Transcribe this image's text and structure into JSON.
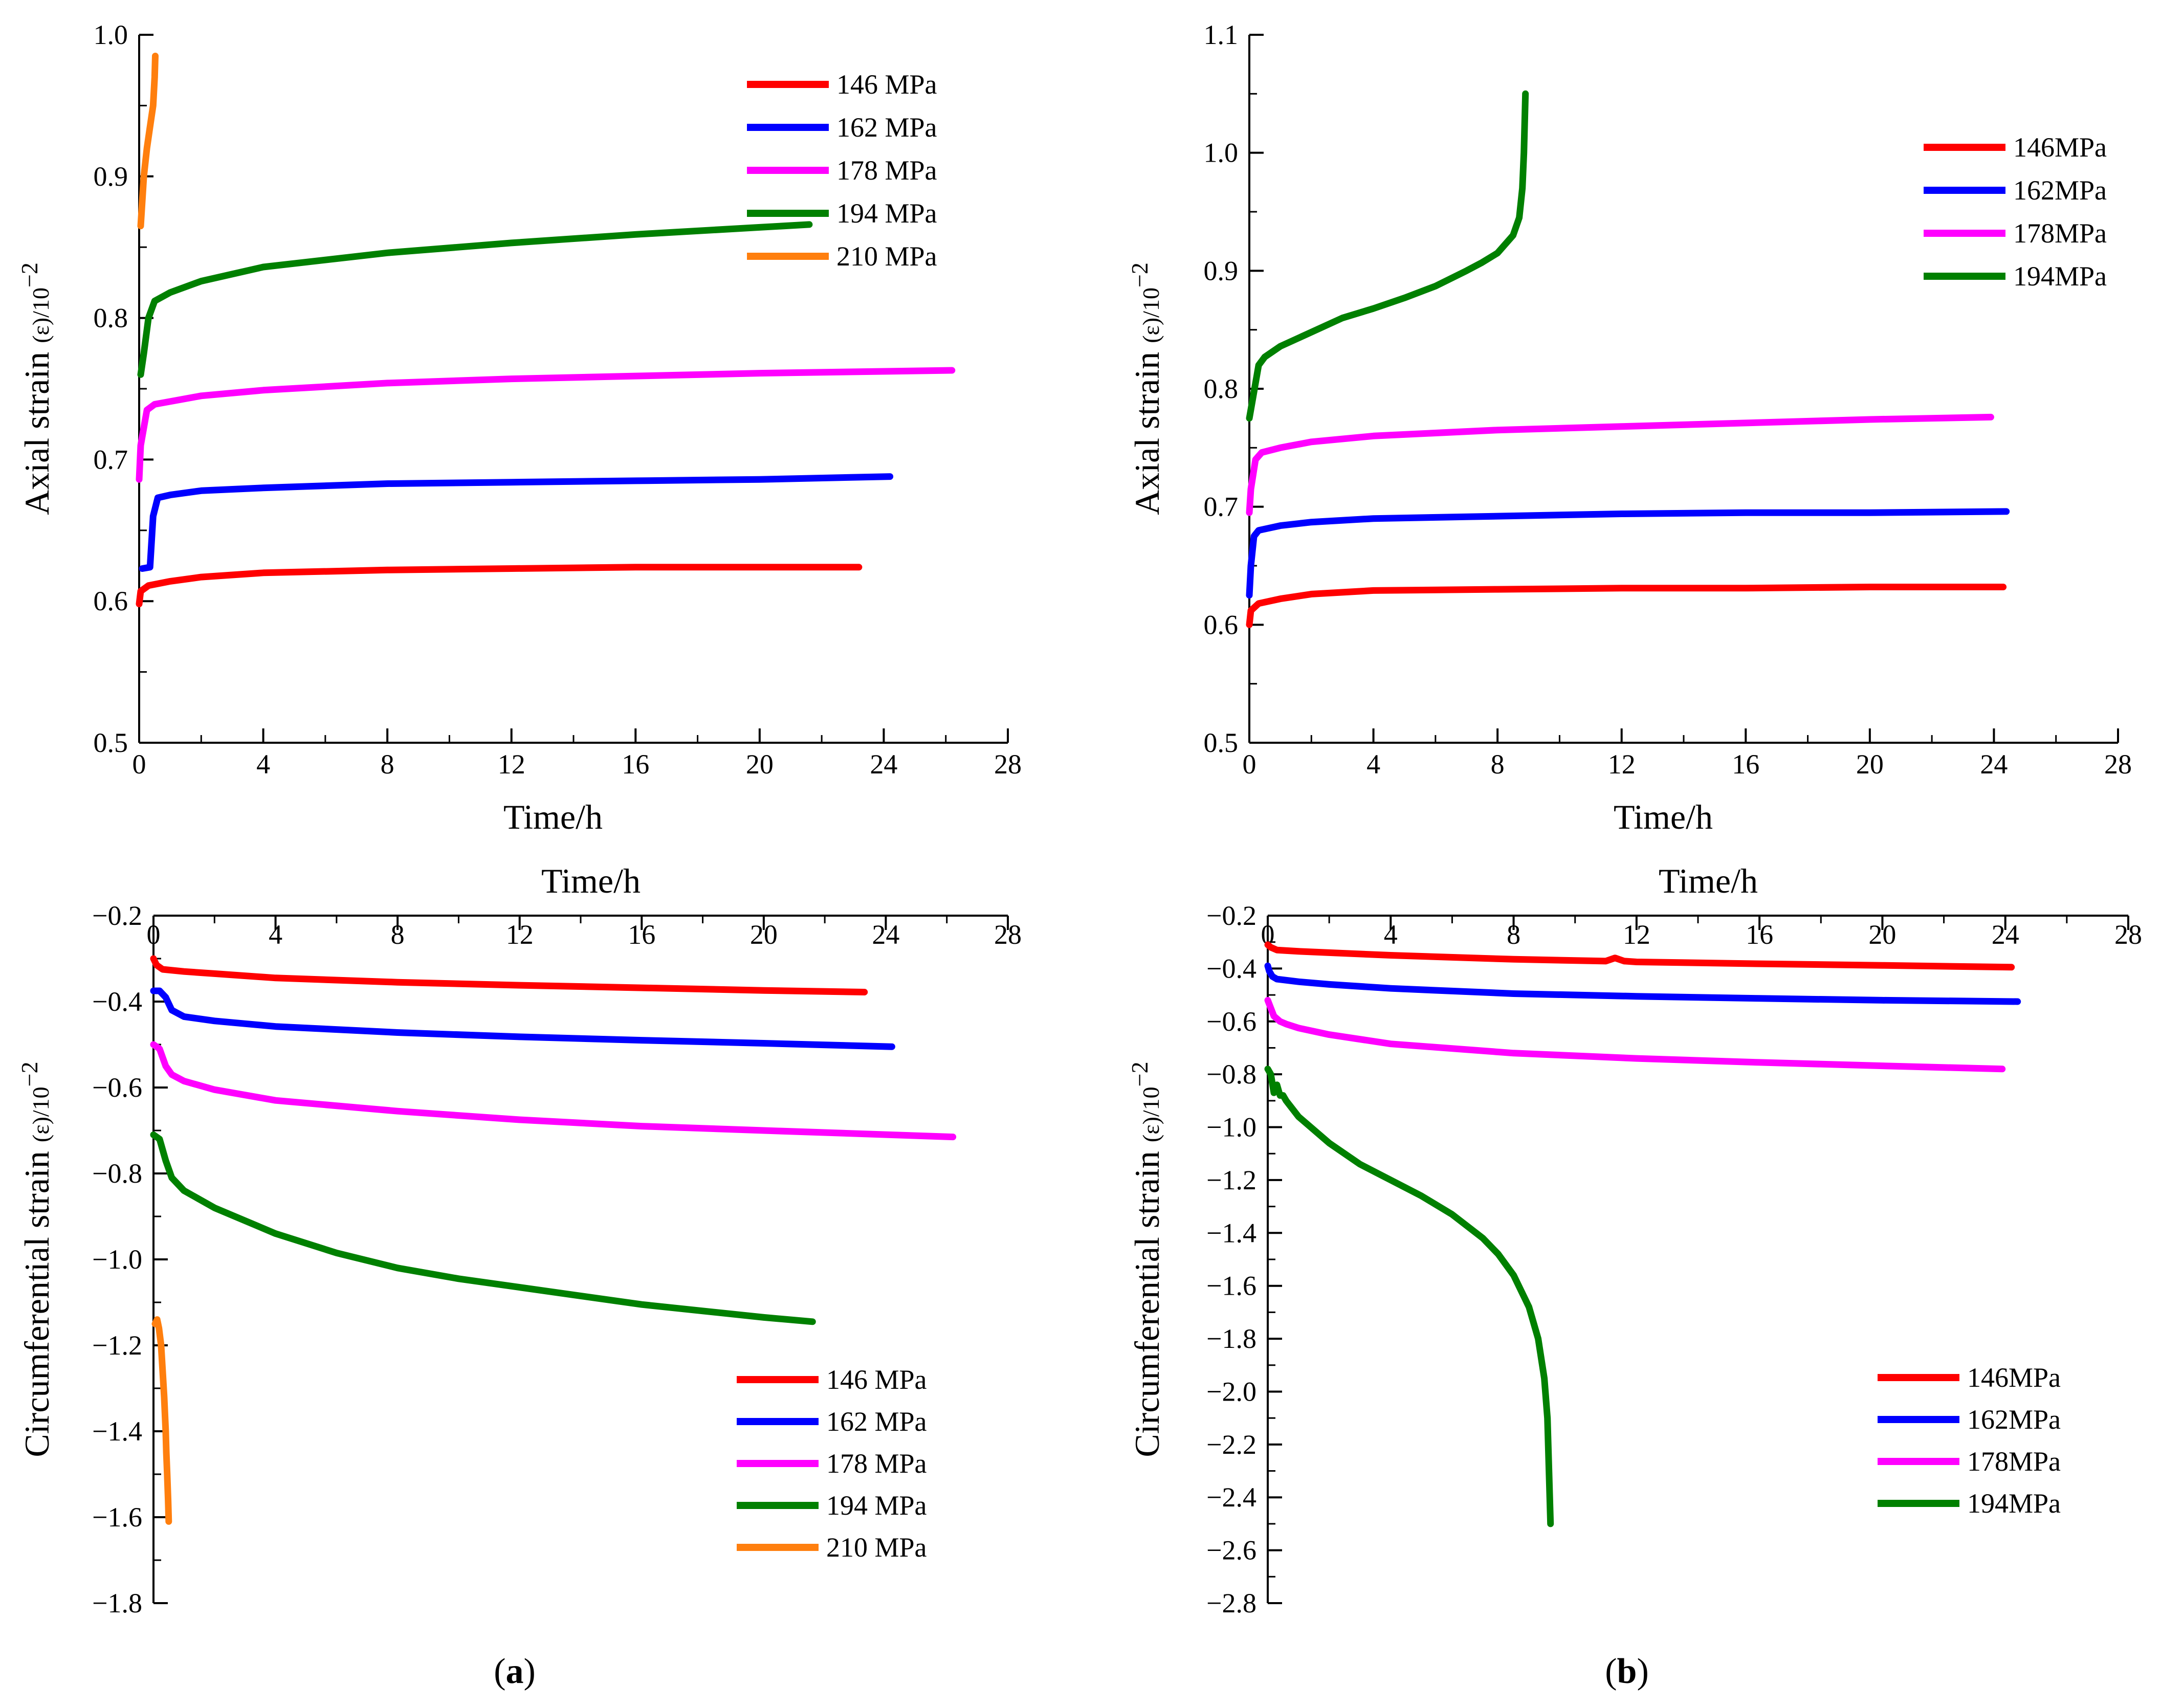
{
  "figure": {
    "captions": [
      {
        "pre": "(",
        "letter": "a",
        "post": ")"
      },
      {
        "pre": "(",
        "letter": "b",
        "post": ")"
      }
    ]
  },
  "colors": {
    "146": "#ff0000",
    "162": "#0000ff",
    "178": "#ff00ff",
    "194": "#008000",
    "210": "#ff7f0e",
    "axis": "#000000"
  },
  "chart_data": [
    {
      "id": "a-axial",
      "type": "line",
      "xlabel": "Time/h",
      "ylabel_main": "Axial strain ",
      "ylabel_paren": "(ε)",
      "ylabel_unit": "/10",
      "ylabel_exp": "−2",
      "xlim": [
        0,
        28
      ],
      "ylim": [
        0.5,
        1.0
      ],
      "xticks": [
        0,
        4,
        8,
        12,
        16,
        20,
        24,
        28
      ],
      "yticks": [
        0.5,
        0.6,
        0.7,
        0.8,
        0.9,
        1.0
      ],
      "xtick_labels": [
        "0",
        "4",
        "8",
        "12",
        "16",
        "20",
        "24",
        "28"
      ],
      "ytick_labels": [
        "0.5",
        "0.6",
        "0.7",
        "0.8",
        "0.9",
        "1.0"
      ],
      "legend": [
        "146 MPa",
        "162 MPa",
        "178 MPa",
        "194 MPa",
        "210 MPa"
      ],
      "series": [
        {
          "name": "146 MPa",
          "color": "#ff0000",
          "x": [
            0,
            0.05,
            0.3,
            1,
            2,
            4,
            8,
            12,
            16,
            20,
            23.2
          ],
          "y": [
            0.598,
            0.607,
            0.611,
            0.614,
            0.617,
            0.62,
            0.622,
            0.623,
            0.624,
            0.624,
            0.624
          ]
        },
        {
          "name": "162 MPa",
          "color": "#0000ff",
          "x": [
            0.1,
            0.35,
            0.45,
            0.6,
            1,
            2,
            4,
            8,
            12,
            16,
            20,
            24.2
          ],
          "y": [
            0.623,
            0.624,
            0.66,
            0.673,
            0.675,
            0.678,
            0.68,
            0.683,
            0.684,
            0.685,
            0.686,
            0.688
          ]
        },
        {
          "name": "178 MPa",
          "color": "#ff00ff",
          "x": [
            0,
            0.05,
            0.25,
            0.5,
            1,
            2,
            4,
            8,
            12,
            16,
            20,
            26.2
          ],
          "y": [
            0.686,
            0.71,
            0.735,
            0.739,
            0.741,
            0.745,
            0.749,
            0.754,
            0.757,
            0.759,
            0.761,
            0.763
          ]
        },
        {
          "name": "194 MPa",
          "color": "#008000",
          "x": [
            0.05,
            0.15,
            0.3,
            0.5,
            1,
            2,
            4,
            8,
            12,
            16,
            20,
            21.6
          ],
          "y": [
            0.76,
            0.775,
            0.8,
            0.812,
            0.818,
            0.826,
            0.836,
            0.846,
            0.853,
            0.859,
            0.864,
            0.866
          ]
        },
        {
          "name": "210 MPa",
          "color": "#ff7f0e",
          "x": [
            0.05,
            0.15,
            0.25,
            0.35,
            0.45,
            0.5,
            0.52
          ],
          "y": [
            0.865,
            0.9,
            0.92,
            0.935,
            0.95,
            0.97,
            0.985
          ]
        }
      ]
    },
    {
      "id": "b-axial",
      "type": "line",
      "xlabel": "Time/h",
      "ylabel_main": "Axial strain ",
      "ylabel_paren": "(ε)",
      "ylabel_unit": "/10",
      "ylabel_exp": "−2",
      "xlim": [
        0,
        28
      ],
      "ylim": [
        0.5,
        1.1
      ],
      "xticks": [
        0,
        4,
        8,
        12,
        16,
        20,
        24,
        28
      ],
      "yticks": [
        0.5,
        0.6,
        0.7,
        0.8,
        0.9,
        1.0,
        1.1
      ],
      "xtick_labels": [
        "0",
        "4",
        "8",
        "12",
        "16",
        "20",
        "24",
        "28"
      ],
      "ytick_labels": [
        "0.5",
        "0.6",
        "0.7",
        "0.8",
        "0.9",
        "1.0",
        "1.1"
      ],
      "legend": [
        "146MPa",
        "162MPa",
        "178MPa",
        "194MPa"
      ],
      "series": [
        {
          "name": "146MPa",
          "color": "#ff0000",
          "x": [
            0,
            0.05,
            0.3,
            1,
            2,
            4,
            8,
            12,
            16,
            20,
            24.3
          ],
          "y": [
            0.6,
            0.612,
            0.618,
            0.622,
            0.626,
            0.629,
            0.63,
            0.631,
            0.631,
            0.632,
            0.632
          ]
        },
        {
          "name": "162MPa",
          "color": "#0000ff",
          "x": [
            0,
            0.05,
            0.15,
            0.3,
            1,
            2,
            4,
            8,
            12,
            16,
            20,
            24.4
          ],
          "y": [
            0.625,
            0.65,
            0.675,
            0.68,
            0.684,
            0.687,
            0.69,
            0.692,
            0.694,
            0.695,
            0.695,
            0.696
          ]
        },
        {
          "name": "178MPa",
          "color": "#ff00ff",
          "x": [
            0,
            0.05,
            0.2,
            0.4,
            1,
            2,
            4,
            8,
            12,
            16,
            20,
            23.9
          ],
          "y": [
            0.695,
            0.715,
            0.74,
            0.746,
            0.75,
            0.755,
            0.76,
            0.765,
            0.768,
            0.771,
            0.774,
            0.776
          ]
        },
        {
          "name": "194MPa",
          "color": "#008000",
          "x": [
            0,
            0.1,
            0.3,
            0.5,
            1,
            2,
            3,
            4,
            5,
            6,
            7,
            7.5,
            8,
            8.5,
            8.7,
            8.8,
            8.85,
            8.9
          ],
          "y": [
            0.775,
            0.79,
            0.82,
            0.827,
            0.836,
            0.848,
            0.86,
            0.868,
            0.877,
            0.887,
            0.9,
            0.907,
            0.915,
            0.93,
            0.945,
            0.97,
            1.0,
            1.05
          ]
        }
      ]
    },
    {
      "id": "a-circ",
      "type": "line",
      "xlabel": "Time/h",
      "ylabel_main": "Circumferential strain ",
      "ylabel_paren": "(ε)",
      "ylabel_unit": "/10",
      "ylabel_exp": "−2",
      "xlim": [
        0,
        28
      ],
      "ylim": [
        -1.8,
        -0.2
      ],
      "xticks": [
        0,
        4,
        8,
        12,
        16,
        20,
        24,
        28
      ],
      "yticks": [
        -1.8,
        -1.6,
        -1.4,
        -1.2,
        -1.0,
        -0.8,
        -0.6,
        -0.4,
        -0.2
      ],
      "xtick_labels": [
        "0",
        "4",
        "8",
        "12",
        "16",
        "20",
        "24",
        "28"
      ],
      "ytick_labels": [
        "−1.8",
        "−1.6",
        "−1.4",
        "−1.2",
        "−1.0",
        "−0.8",
        "−0.6",
        "−0.4",
        "−0.2"
      ],
      "legend": [
        "146 MPa",
        "162 MPa",
        "178 MPa",
        "194 MPa",
        "210 MPa"
      ],
      "series": [
        {
          "name": "146 MPa",
          "color": "#ff0000",
          "x": [
            0,
            0.1,
            0.3,
            1,
            2,
            4,
            8,
            12,
            16,
            20,
            23.3
          ],
          "y": [
            -0.3,
            -0.315,
            -0.325,
            -0.33,
            -0.335,
            -0.345,
            -0.355,
            -0.362,
            -0.368,
            -0.374,
            -0.378
          ]
        },
        {
          "name": "162 MPa",
          "color": "#0000ff",
          "x": [
            0,
            0.2,
            0.4,
            0.6,
            1,
            2,
            4,
            8,
            12,
            16,
            20,
            24.2
          ],
          "y": [
            -0.375,
            -0.375,
            -0.39,
            -0.42,
            -0.435,
            -0.445,
            -0.458,
            -0.472,
            -0.482,
            -0.49,
            -0.497,
            -0.505
          ]
        },
        {
          "name": "178 MPa",
          "color": "#ff00ff",
          "x": [
            0,
            0.2,
            0.4,
            0.6,
            1,
            2,
            4,
            8,
            12,
            16,
            20,
            26.2
          ],
          "y": [
            -0.5,
            -0.51,
            -0.55,
            -0.57,
            -0.585,
            -0.605,
            -0.63,
            -0.655,
            -0.675,
            -0.69,
            -0.7,
            -0.715
          ]
        },
        {
          "name": "194 MPa",
          "color": "#008000",
          "x": [
            0,
            0.2,
            0.4,
            0.6,
            1,
            2,
            4,
            6,
            8,
            10,
            12,
            14,
            16,
            18,
            20,
            21.6
          ],
          "y": [
            -0.71,
            -0.72,
            -0.77,
            -0.81,
            -0.84,
            -0.88,
            -0.94,
            -0.985,
            -1.02,
            -1.045,
            -1.065,
            -1.085,
            -1.105,
            -1.12,
            -1.135,
            -1.145
          ]
        },
        {
          "name": "210 MPa",
          "color": "#ff7f0e",
          "x": [
            0.05,
            0.12,
            0.18,
            0.25,
            0.3,
            0.35,
            0.4,
            0.42,
            0.45,
            0.48,
            0.5
          ],
          "y": [
            -1.15,
            -1.14,
            -1.16,
            -1.2,
            -1.26,
            -1.32,
            -1.4,
            -1.45,
            -1.5,
            -1.56,
            -1.61
          ]
        }
      ]
    },
    {
      "id": "b-circ",
      "type": "line",
      "xlabel": "Time/h",
      "ylabel_main": "Circumferential strain ",
      "ylabel_paren": "(ε)",
      "ylabel_unit": "/10",
      "ylabel_exp": "−2",
      "xlim": [
        0,
        28
      ],
      "ylim": [
        -2.8,
        -0.2
      ],
      "xticks": [
        0,
        4,
        8,
        12,
        16,
        20,
        24,
        28
      ],
      "yticks": [
        -2.8,
        -2.6,
        -2.4,
        -2.2,
        -2.0,
        -1.8,
        -1.6,
        -1.4,
        -1.2,
        -1.0,
        -0.8,
        -0.6,
        -0.4,
        -0.2
      ],
      "xtick_labels": [
        "0",
        "4",
        "8",
        "12",
        "16",
        "20",
        "24",
        "28"
      ],
      "ytick_labels": [
        "−2.8",
        "−2.6",
        "−2.4",
        "−2.2",
        "−2.0",
        "−1.8",
        "−1.6",
        "−1.4",
        "−1.2",
        "−1.0",
        "−0.8",
        "−0.6",
        "−0.4",
        "−0.2"
      ],
      "legend": [
        "146MPa",
        "162MPa",
        "178MPa",
        "194MPa"
      ],
      "series": [
        {
          "name": "146MPa",
          "color": "#ff0000",
          "x": [
            0,
            0.1,
            0.3,
            1,
            2,
            4,
            8,
            11,
            11.3,
            11.6,
            12,
            16,
            20,
            24.2
          ],
          "y": [
            -0.31,
            -0.32,
            -0.33,
            -0.335,
            -0.34,
            -0.35,
            -0.365,
            -0.372,
            -0.36,
            -0.372,
            -0.375,
            -0.382,
            -0.388,
            -0.395
          ]
        },
        {
          "name": "162MPa",
          "color": "#0000ff",
          "x": [
            0,
            0.05,
            0.15,
            0.3,
            1,
            2,
            4,
            8,
            12,
            16,
            20,
            24.4
          ],
          "y": [
            -0.39,
            -0.41,
            -0.43,
            -0.44,
            -0.45,
            -0.46,
            -0.475,
            -0.495,
            -0.505,
            -0.513,
            -0.52,
            -0.525
          ]
        },
        {
          "name": "178MPa",
          "color": "#ff00ff",
          "x": [
            0,
            0.1,
            0.2,
            0.4,
            0.6,
            1,
            2,
            4,
            8,
            12,
            16,
            20,
            23.9
          ],
          "y": [
            -0.52,
            -0.55,
            -0.58,
            -0.6,
            -0.61,
            -0.625,
            -0.65,
            -0.685,
            -0.72,
            -0.74,
            -0.755,
            -0.768,
            -0.78
          ]
        },
        {
          "name": "194MPa",
          "color": "#008000",
          "x": [
            0,
            0.1,
            0.2,
            0.3,
            0.4,
            0.5,
            0.6,
            1,
            2,
            3,
            4,
            5,
            6,
            7,
            7.5,
            8,
            8.5,
            8.8,
            9.0,
            9.1,
            9.15,
            9.2
          ],
          "y": [
            -0.78,
            -0.8,
            -0.87,
            -0.84,
            -0.88,
            -0.88,
            -0.9,
            -0.96,
            -1.06,
            -1.14,
            -1.2,
            -1.26,
            -1.33,
            -1.42,
            -1.48,
            -1.56,
            -1.68,
            -1.8,
            -1.95,
            -2.1,
            -2.3,
            -2.5
          ]
        }
      ]
    }
  ]
}
